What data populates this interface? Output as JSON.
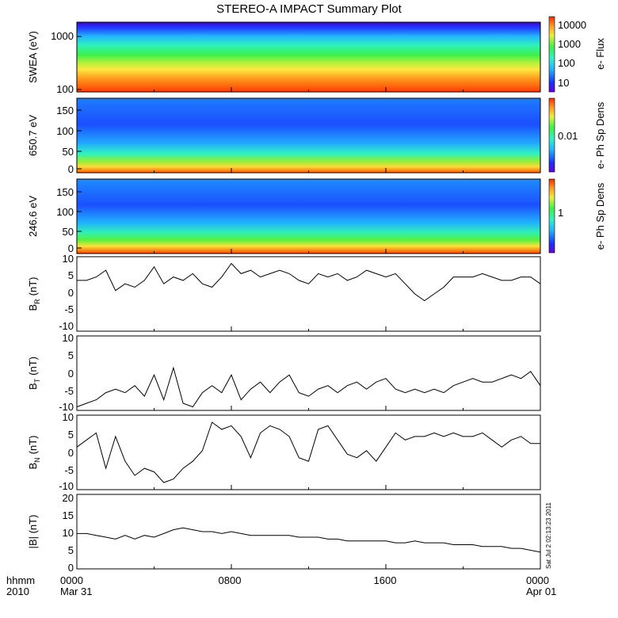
{
  "title": "STEREO-A IMPACT Summary Plot",
  "footer": {
    "left_top": "hhmm",
    "left_bottom": "2010",
    "ticks": [
      {
        "top": "0000",
        "bottom": "Mar 31"
      },
      {
        "top": "0800",
        "bottom": ""
      },
      {
        "top": "1600",
        "bottom": ""
      },
      {
        "top": "0000",
        "bottom": "Apr 01"
      }
    ],
    "timestamp": "Sat Jul  2 02:13:23 2011"
  },
  "colors": {
    "background": "#ffffff",
    "line": "#000000"
  },
  "chart_data": [
    {
      "type": "heatmap",
      "ylabel": "SWEA (eV)",
      "ytick_labels": [
        "1000",
        "100"
      ],
      "ylog": true,
      "colorbar": {
        "label": "e- Flux",
        "tick_labels": [
          "10000",
          "1000",
          "100",
          "10"
        ]
      }
    },
    {
      "type": "heatmap",
      "ylabel": "650.7 eV",
      "ylim": [
        0,
        180
      ],
      "ytick_labels": [
        "150",
        "100",
        "50",
        "0"
      ],
      "colorbar": {
        "label": "e- Ph Sp Dens",
        "tick_labels": [
          "0.01"
        ]
      }
    },
    {
      "type": "heatmap",
      "ylabel": "246.6 eV",
      "ylim": [
        0,
        180
      ],
      "ytick_labels": [
        "150",
        "100",
        "50",
        "0"
      ],
      "colorbar": {
        "label": "e- Ph Sp Dens",
        "tick_labels": [
          "1"
        ]
      }
    },
    {
      "type": "line",
      "ylabel_main": "B",
      "ylabel_sub": "R",
      "ylabel_unit": "(nT)",
      "ylim": [
        -12,
        10
      ],
      "ytick_labels": [
        "10",
        "5",
        "0",
        "-5",
        "-10"
      ],
      "x": [
        0,
        0.5,
        1,
        1.5,
        2,
        2.5,
        3,
        3.5,
        4,
        4.5,
        5,
        5.5,
        6,
        6.5,
        7,
        7.5,
        8,
        8.5,
        9,
        9.5,
        10,
        10.5,
        11,
        11.5,
        12,
        12.5,
        13,
        13.5,
        14,
        14.5,
        15,
        15.5,
        16,
        16.5,
        17,
        17.5,
        18,
        18.5,
        19,
        19.5,
        20,
        20.5,
        21,
        21.5,
        22,
        22.5,
        23,
        23.5,
        24
      ],
      "y": [
        3,
        3,
        4,
        6,
        0,
        2,
        1,
        3,
        7,
        2,
        4,
        3,
        5,
        2,
        1,
        4,
        8,
        5,
        6,
        4,
        5,
        6,
        5,
        3,
        2,
        5,
        4,
        5,
        3,
        4,
        6,
        5,
        4,
        5,
        2,
        -1,
        -3,
        -1,
        1,
        4,
        4,
        4,
        5,
        4,
        3,
        3,
        4,
        4,
        2
      ]
    },
    {
      "type": "line",
      "ylabel_main": "B",
      "ylabel_sub": "T",
      "ylabel_unit": "(nT)",
      "ylim": [
        -11,
        10
      ],
      "ytick_labels": [
        "10",
        "5",
        "0",
        "-5",
        "-10"
      ],
      "x": [
        0,
        0.5,
        1,
        1.5,
        2,
        2.5,
        3,
        3.5,
        4,
        4.5,
        5,
        5.5,
        6,
        6.5,
        7,
        7.5,
        8,
        8.5,
        9,
        9.5,
        10,
        10.5,
        11,
        11.5,
        12,
        12.5,
        13,
        13.5,
        14,
        14.5,
        15,
        15.5,
        16,
        16.5,
        17,
        17.5,
        18,
        18.5,
        19,
        19.5,
        20,
        20.5,
        21,
        21.5,
        22,
        22.5,
        23,
        23.5,
        24
      ],
      "y": [
        -10,
        -9,
        -8,
        -6,
        -5,
        -6,
        -4,
        -7,
        -1,
        -8,
        1,
        -9,
        -10,
        -6,
        -4,
        -6,
        -1,
        -8,
        -5,
        -3,
        -6,
        -3,
        -1,
        -6,
        -7,
        -5,
        -4,
        -6,
        -4,
        -3,
        -5,
        -3,
        -2,
        -5,
        -6,
        -5,
        -6,
        -5,
        -6,
        -4,
        -3,
        -2,
        -3,
        -3,
        -2,
        -1,
        -2,
        0,
        -4
      ]
    },
    {
      "type": "line",
      "ylabel_main": "B",
      "ylabel_sub": "N",
      "ylabel_unit": "(nT)",
      "ylim": [
        -11,
        10
      ],
      "ytick_labels": [
        "10",
        "5",
        "0",
        "-5",
        "-10"
      ],
      "x": [
        0,
        0.5,
        1,
        1.5,
        2,
        2.5,
        3,
        3.5,
        4,
        4.5,
        5,
        5.5,
        6,
        6.5,
        7,
        7.5,
        8,
        8.5,
        9,
        9.5,
        10,
        10.5,
        11,
        11.5,
        12,
        12.5,
        13,
        13.5,
        14,
        14.5,
        15,
        15.5,
        16,
        16.5,
        17,
        17.5,
        18,
        18.5,
        19,
        19.5,
        20,
        20.5,
        21,
        21.5,
        22,
        22.5,
        23,
        23.5,
        24
      ],
      "y": [
        1,
        3,
        5,
        -5,
        4,
        -3,
        -7,
        -5,
        -6,
        -9,
        -8,
        -5,
        -3,
        0,
        8,
        6,
        7,
        4,
        -2,
        5,
        7,
        6,
        4,
        -2,
        -3,
        6,
        7,
        3,
        -1,
        -2,
        0,
        -3,
        1,
        5,
        3,
        4,
        4,
        5,
        4,
        5,
        4,
        4,
        5,
        3,
        1,
        3,
        4,
        2,
        2
      ]
    },
    {
      "type": "line",
      "ylabel": "|B| (nT)",
      "ylim": [
        0,
        20
      ],
      "ytick_labels": [
        "20",
        "15",
        "10",
        "5",
        "0"
      ],
      "x": [
        0,
        0.5,
        1,
        1.5,
        2,
        2.5,
        3,
        3.5,
        4,
        4.5,
        5,
        5.5,
        6,
        6.5,
        7,
        7.5,
        8,
        8.5,
        9,
        9.5,
        10,
        10.5,
        11,
        11.5,
        12,
        12.5,
        13,
        13.5,
        14,
        14.5,
        15,
        15.5,
        16,
        16.5,
        17,
        17.5,
        18,
        18.5,
        19,
        19.5,
        20,
        20.5,
        21,
        21.5,
        22,
        22.5,
        23,
        23.5,
        24
      ],
      "y": [
        9.5,
        9.5,
        9,
        8.5,
        8,
        9,
        8,
        9,
        8.5,
        9.5,
        10.5,
        11,
        10.5,
        10,
        10,
        9.5,
        10,
        9.5,
        9,
        9,
        9,
        9,
        9,
        8.5,
        8.5,
        8.5,
        8,
        8,
        7.5,
        7.5,
        7.5,
        7.5,
        7.5,
        7,
        7,
        7.5,
        7,
        7,
        7,
        6.5,
        6.5,
        6.5,
        6,
        6,
        6,
        5.5,
        5.5,
        5,
        4.5
      ]
    }
  ]
}
